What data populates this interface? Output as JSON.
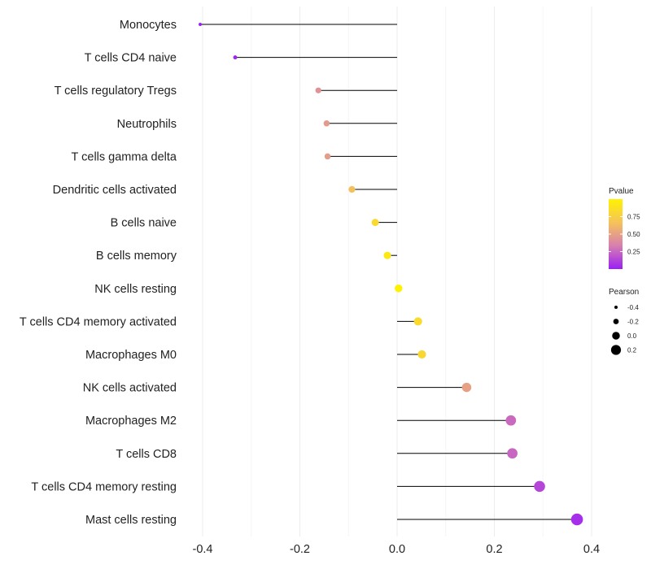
{
  "chart_data": {
    "type": "lollipop",
    "title": "",
    "xlabel": "",
    "ylabel": "",
    "xlim": [
      -0.41,
      0.44
    ],
    "x_ticks": [
      -0.4,
      -0.2,
      0.0,
      0.2,
      0.4
    ],
    "x_tick_labels": [
      "-0.4",
      "-0.2",
      "0.0",
      "0.2",
      "0.4"
    ],
    "grid": true,
    "points": [
      {
        "category": "Monocytes",
        "value": -0.405,
        "pvalue": 0.0
      },
      {
        "category": "T cells CD4 naive",
        "value": -0.333,
        "pvalue": 0.02
      },
      {
        "category": "T cells regulatory  Tregs ",
        "value": -0.162,
        "pvalue": 0.43
      },
      {
        "category": "Neutrophils",
        "value": -0.145,
        "pvalue": 0.47
      },
      {
        "category": "T cells gamma delta",
        "value": -0.143,
        "pvalue": 0.48
      },
      {
        "category": "Dendritic cells activated",
        "value": -0.093,
        "pvalue": 0.65
      },
      {
        "category": "B cells naive",
        "value": -0.045,
        "pvalue": 0.82
      },
      {
        "category": "B cells memory",
        "value": -0.02,
        "pvalue": 0.93
      },
      {
        "category": "NK cells resting",
        "value": 0.003,
        "pvalue": 0.99
      },
      {
        "category": "T cells CD4 memory activated",
        "value": 0.043,
        "pvalue": 0.84
      },
      {
        "category": "Macrophages M0",
        "value": 0.051,
        "pvalue": 0.81
      },
      {
        "category": "NK cells activated",
        "value": 0.143,
        "pvalue": 0.5
      },
      {
        "category": "Macrophages M2",
        "value": 0.234,
        "pvalue": 0.26
      },
      {
        "category": "T cells CD8",
        "value": 0.237,
        "pvalue": 0.25
      },
      {
        "category": "T cells CD4 memory resting",
        "value": 0.293,
        "pvalue": 0.14
      },
      {
        "category": "Mast cells resting",
        "value": 0.37,
        "pvalue": 0.06
      }
    ],
    "color_scale": {
      "name": "Pvalue",
      "domain": [
        0.0,
        1.0
      ],
      "colors": [
        "#9b1ff5",
        "#d77fb0",
        "#f5c35a",
        "#fff200"
      ],
      "ticks": [
        0.25,
        0.5,
        0.75
      ],
      "tick_labels": [
        "0.25",
        "0.50",
        "0.75"
      ]
    },
    "size_scale": {
      "name": "Pearson",
      "values": [
        -0.4,
        -0.2,
        0.0,
        0.2
      ],
      "labels": [
        "-0.4",
        "-0.2",
        "0.0",
        "0.2"
      ]
    },
    "legend_position": "right"
  }
}
